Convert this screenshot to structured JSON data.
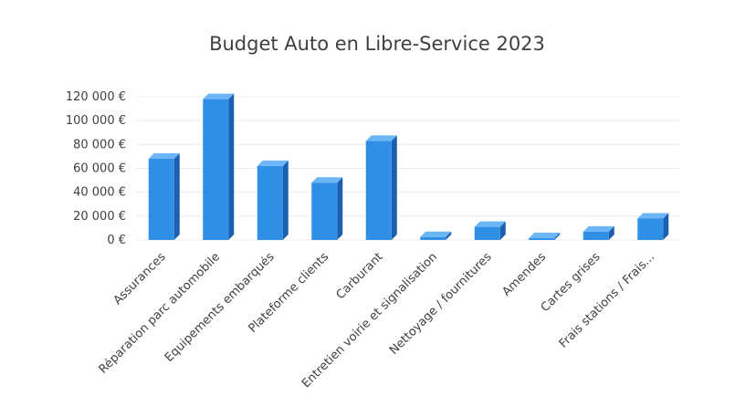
{
  "chart_data": {
    "type": "bar",
    "title": "Budget Auto en Libre-Service 2023",
    "xlabel": "",
    "ylabel": "",
    "categories": [
      "Assurances",
      "Réparation parc automobile",
      "Equipements embarqués",
      "Plateforme clients",
      "Carburant",
      "Entretien voirie et signalisation",
      "Nettoyage / fournitures",
      "Amendes",
      "Cartes grises",
      "Frais stations / Frais..."
    ],
    "values": [
      68000,
      118000,
      62000,
      48000,
      83000,
      2500,
      11000,
      1500,
      7000,
      18000
    ],
    "ylim": [
      0,
      120000
    ],
    "yticks": [
      0,
      20000,
      40000,
      60000,
      80000,
      100000,
      120000
    ],
    "ytick_labels": [
      "0 €",
      "20 000 €",
      "40 000 €",
      "60 000 €",
      "80 000 €",
      "100 000 €",
      "120 000 €"
    ],
    "grid": true,
    "legend": "none",
    "colors": {
      "bar_front": "#2f8fe6",
      "bar_side": "#1a5fb0",
      "bar_top": "#6cb6f5",
      "grid": "#ececec",
      "text": "#404040"
    }
  }
}
